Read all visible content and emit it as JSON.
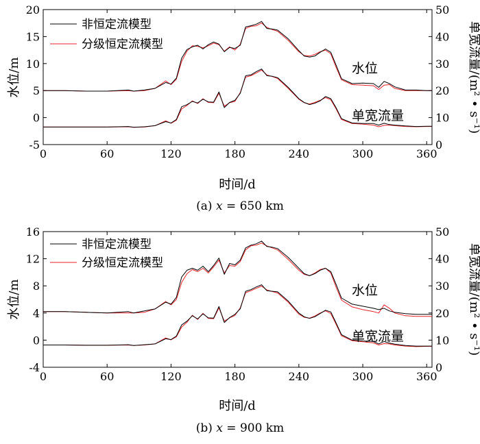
{
  "chart_data": [
    {
      "type": "line",
      "caption": {
        "prefix": "(a) ",
        "var": "x",
        "value": " = 650 km"
      },
      "xlabel": "时间/d",
      "ylabel_left": "水位/m",
      "ylabel_right": "单宽流量/(m² • s⁻¹)",
      "xlim": [
        0,
        365
      ],
      "ylim_left": [
        -5,
        20
      ],
      "ylim_right": [
        0,
        50
      ],
      "xticks": [
        "0",
        "60",
        "120",
        "180",
        "240",
        "300",
        "360"
      ],
      "yticks_left": [
        "20",
        "15",
        "10",
        "5",
        "0",
        "-5"
      ],
      "yticks_right": [
        "50",
        "40",
        "30",
        "20",
        "10",
        "0"
      ],
      "legend": [
        "非恒定流模型",
        "分级恒定流模型"
      ],
      "legend_colors": [
        "#000000",
        "#e8212a"
      ],
      "annotations": [
        "水位",
        "单宽流量"
      ],
      "x": [
        0,
        20,
        40,
        60,
        80,
        85,
        95,
        105,
        115,
        120,
        125,
        130,
        135,
        140,
        145,
        150,
        155,
        160,
        165,
        170,
        175,
        180,
        185,
        190,
        195,
        200,
        205,
        210,
        215,
        220,
        230,
        240,
        245,
        250,
        255,
        260,
        265,
        270,
        275,
        280,
        290,
        300,
        310,
        315,
        320,
        325,
        330,
        340,
        350,
        360,
        365
      ],
      "series": [
        {
          "name": "非恒定流模型",
          "axis": "left",
          "values": [
            5.0,
            5.0,
            4.9,
            4.9,
            5.1,
            4.9,
            5.1,
            5.4,
            6.5,
            6.2,
            7.3,
            11.0,
            12.6,
            13.1,
            13.4,
            12.7,
            13.5,
            14.0,
            13.6,
            12.2,
            13.0,
            12.8,
            13.4,
            16.8,
            17.0,
            17.3,
            17.8,
            16.5,
            16.4,
            16.2,
            14.6,
            12.4,
            11.4,
            11.2,
            11.4,
            12.1,
            12.7,
            12.1,
            9.7,
            7.2,
            6.3,
            6.4,
            6.3,
            5.6,
            6.7,
            6.3,
            5.7,
            5.1,
            5.1,
            5.0,
            5.0
          ]
        },
        {
          "name": "分级恒定流模型",
          "axis": "left",
          "values": [
            5.0,
            5.0,
            4.9,
            4.9,
            5.0,
            4.9,
            5.0,
            5.4,
            6.8,
            6.1,
            7.1,
            10.4,
            12.3,
            13.3,
            13.2,
            12.9,
            13.3,
            13.8,
            13.5,
            12.3,
            13.1,
            12.5,
            13.6,
            16.5,
            16.9,
            17.0,
            17.5,
            16.7,
            16.3,
            16.0,
            14.3,
            12.2,
            11.5,
            11.4,
            11.7,
            12.2,
            12.5,
            11.8,
            9.3,
            7.0,
            6.1,
            6.0,
            5.9,
            5.2,
            6.0,
            6.1,
            5.4,
            5.0,
            5.0,
            5.0,
            5.0
          ]
        },
        {
          "name": "非恒定流模型",
          "axis": "right",
          "values": [
            6.5,
            6.5,
            6.5,
            6.5,
            6.7,
            6.4,
            6.6,
            7.0,
            8.5,
            8.0,
            9.3,
            14.0,
            14.8,
            16.0,
            15.4,
            16.8,
            15.8,
            15.7,
            19.5,
            13.7,
            15.6,
            16.4,
            19.0,
            25.5,
            25.8,
            27.0,
            28.0,
            25.5,
            25.3,
            24.8,
            21.2,
            17.0,
            15.6,
            14.8,
            15.3,
            16.2,
            17.8,
            17.0,
            13.6,
            9.6,
            8.0,
            7.8,
            7.8,
            7.2,
            7.9,
            7.4,
            7.2,
            6.9,
            6.7,
            6.8,
            6.8
          ]
        },
        {
          "name": "分级恒定流模型",
          "axis": "right",
          "values": [
            6.5,
            6.5,
            6.5,
            6.5,
            6.6,
            6.4,
            6.5,
            7.0,
            8.8,
            7.9,
            9.0,
            13.2,
            14.5,
            16.2,
            15.2,
            17.0,
            15.6,
            15.5,
            19.0,
            14.2,
            15.5,
            16.0,
            19.3,
            25.0,
            25.5,
            26.5,
            27.6,
            25.8,
            25.2,
            24.5,
            20.8,
            16.8,
            15.5,
            15.0,
            15.6,
            16.4,
            17.4,
            16.6,
            13.2,
            9.3,
            7.8,
            7.6,
            7.2,
            6.6,
            7.1,
            7.2,
            7.0,
            6.7,
            6.6,
            6.7,
            6.7
          ]
        }
      ]
    },
    {
      "type": "line",
      "caption": {
        "prefix": "(b) ",
        "var": "x",
        "value": " = 900 km"
      },
      "xlabel": "时间/d",
      "ylabel_left": "水位/m",
      "ylabel_right": "单宽流量/(m² • s⁻¹)",
      "xlim": [
        0,
        365
      ],
      "ylim_left": [
        -4,
        16
      ],
      "ylim_right": [
        0,
        50
      ],
      "xticks": [
        "0",
        "60",
        "120",
        "180",
        "240",
        "300",
        "360"
      ],
      "yticks_left": [
        "16",
        "12",
        "8",
        "4",
        "0",
        "-4"
      ],
      "yticks_right": [
        "50",
        "40",
        "30",
        "20",
        "10",
        "0"
      ],
      "legend": [
        "非恒定流模型",
        "分级恒定流模型"
      ],
      "legend_colors": [
        "#000000",
        "#e8212a"
      ],
      "annotations": [
        "水位",
        "单宽流量"
      ],
      "x": [
        0,
        20,
        40,
        60,
        80,
        85,
        95,
        105,
        115,
        120,
        125,
        130,
        135,
        140,
        145,
        150,
        155,
        160,
        165,
        170,
        175,
        180,
        185,
        190,
        195,
        200,
        205,
        210,
        215,
        220,
        230,
        240,
        245,
        250,
        255,
        260,
        265,
        270,
        275,
        280,
        290,
        300,
        310,
        315,
        320,
        325,
        330,
        340,
        350,
        360,
        365
      ],
      "series": [
        {
          "name": "非恒定流模型",
          "axis": "left",
          "values": [
            4.2,
            4.2,
            4.1,
            4.0,
            4.2,
            4.0,
            4.3,
            4.6,
            5.6,
            5.3,
            6.3,
            9.3,
            10.3,
            10.6,
            10.3,
            10.9,
            10.1,
            11.0,
            12.1,
            9.7,
            11.3,
            11.1,
            11.8,
            13.6,
            14.0,
            14.2,
            14.6,
            13.8,
            13.7,
            13.5,
            12.2,
            10.6,
            9.8,
            9.5,
            9.8,
            10.3,
            10.6,
            10.1,
            8.2,
            6.2,
            5.3,
            5.0,
            4.7,
            4.5,
            4.7,
            4.3,
            4.1,
            3.9,
            3.8,
            3.8,
            3.8
          ]
        },
        {
          "name": "分级恒定流模型",
          "axis": "left",
          "values": [
            4.2,
            4.2,
            4.1,
            4.0,
            4.0,
            4.0,
            4.1,
            4.6,
            5.7,
            5.2,
            6.0,
            8.5,
            9.8,
            10.4,
            10.1,
            10.6,
            9.9,
            10.8,
            11.8,
            9.9,
            11.0,
            10.9,
            11.6,
            13.3,
            13.9,
            14.0,
            14.3,
            13.9,
            13.6,
            13.3,
            11.9,
            10.3,
            9.7,
            9.5,
            9.9,
            10.4,
            10.6,
            9.9,
            7.8,
            5.9,
            4.9,
            4.5,
            4.2,
            4.0,
            5.2,
            4.7,
            4.0,
            3.6,
            3.5,
            3.5,
            3.5
          ]
        },
        {
          "name": "非恒定流模型",
          "axis": "right",
          "values": [
            8.2,
            8.2,
            8.1,
            8.1,
            8.3,
            8.0,
            8.3,
            8.6,
            10.5,
            10.2,
            11.5,
            15.6,
            17.0,
            19.0,
            17.8,
            19.7,
            18.2,
            18.1,
            22.4,
            16.5,
            18.3,
            19.5,
            21.6,
            28.0,
            28.6,
            29.6,
            30.4,
            28.2,
            28.0,
            27.8,
            24.4,
            20.0,
            18.6,
            18.0,
            18.6,
            19.8,
            21.0,
            20.4,
            16.3,
            12.0,
            10.0,
            9.7,
            9.5,
            8.6,
            9.5,
            8.9,
            8.5,
            8.0,
            7.8,
            7.8,
            7.8
          ]
        },
        {
          "name": "分级恒定流模型",
          "axis": "right",
          "values": [
            8.2,
            8.2,
            8.1,
            8.1,
            8.2,
            8.0,
            8.2,
            8.6,
            10.8,
            10.1,
            11.2,
            14.8,
            16.6,
            19.2,
            17.6,
            19.9,
            18.0,
            17.9,
            21.9,
            17.0,
            18.2,
            19.1,
            21.9,
            27.5,
            28.2,
            29.1,
            29.9,
            28.5,
            27.9,
            27.4,
            24.0,
            19.6,
            18.4,
            18.1,
            18.9,
            20.0,
            20.8,
            19.8,
            15.8,
            11.6,
            9.8,
            9.4,
            9.0,
            8.2,
            8.7,
            8.6,
            8.2,
            7.8,
            7.6,
            7.7,
            7.7
          ]
        }
      ]
    }
  ]
}
